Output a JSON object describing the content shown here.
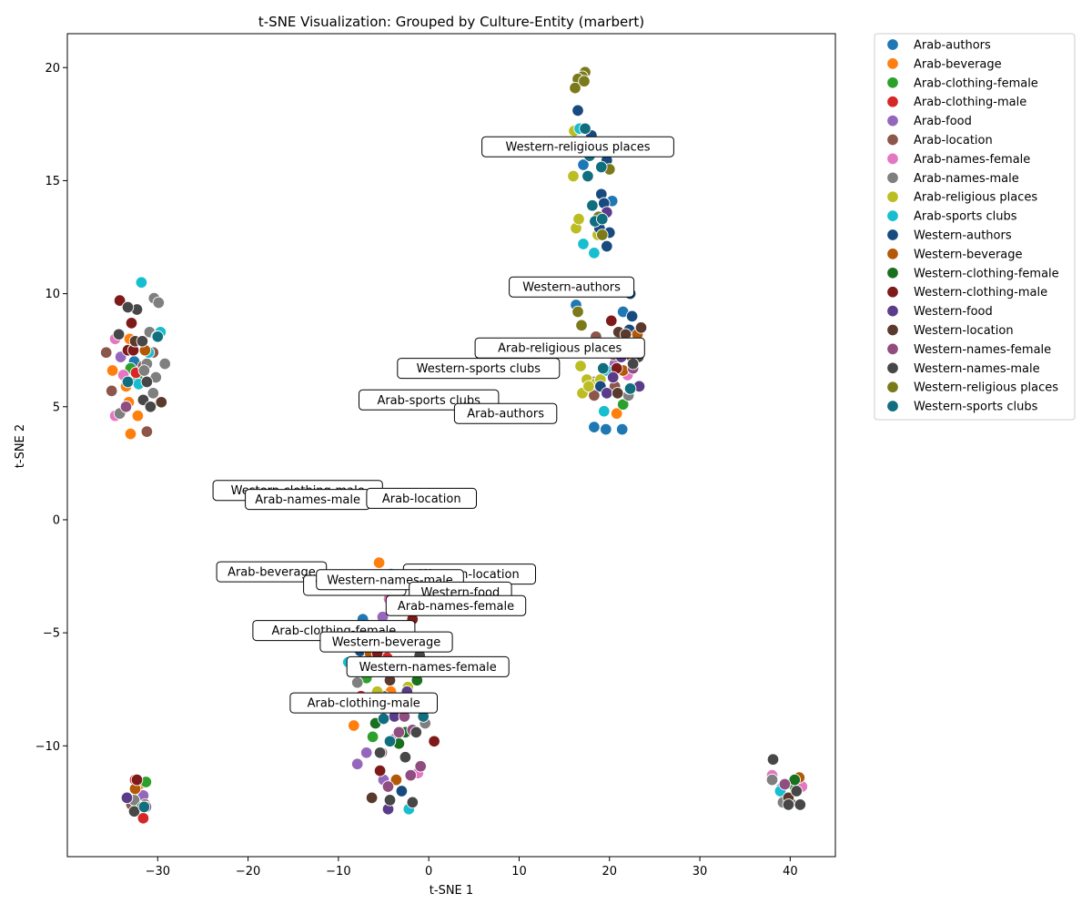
{
  "chart_data": {
    "type": "scatter",
    "title": "t-SNE Visualization: Grouped by Culture-Entity (marbert)",
    "xlabel": "t-SNE 1",
    "ylabel": "t-SNE 2",
    "xlim": [
      -40,
      45
    ],
    "ylim": [
      -14.9,
      21.5
    ],
    "xticks": [
      -30,
      -20,
      -10,
      0,
      10,
      20,
      30,
      40
    ],
    "xtick_labels": [
      "−30",
      "−20",
      "−10",
      "0",
      "10",
      "20",
      "30",
      "40"
    ],
    "yticks": [
      -10,
      -5,
      0,
      5,
      10,
      15,
      20
    ],
    "ytick_labels": [
      "−10",
      "−5",
      "0",
      "5",
      "10",
      "15",
      "20"
    ],
    "grid": false,
    "legend": "outside upper right",
    "series": [
      {
        "name": "Arab-authors",
        "color": "#1f77b4",
        "points": [
          [
            16.3,
            9.5
          ],
          [
            21.5,
            9.2
          ],
          [
            18.3,
            4.1
          ],
          [
            19.6,
            4.0
          ],
          [
            21.4,
            4.0
          ],
          [
            20.3,
            14.1
          ],
          [
            17.1,
            15.7
          ],
          [
            -32.6,
            7.0
          ],
          [
            -7.3,
            -4.4
          ],
          [
            -2.7,
            -8.2
          ],
          [
            39.0,
            -11.9
          ]
        ]
      },
      {
        "name": "Arab-beverage",
        "color": "#ff7f0e",
        "points": [
          [
            -33.1,
            8.0
          ],
          [
            -35.0,
            6.6
          ],
          [
            -33.5,
            5.9
          ],
          [
            -33.2,
            5.2
          ],
          [
            -32.2,
            4.6
          ],
          [
            -33.0,
            3.8
          ],
          [
            -5.5,
            -1.9
          ],
          [
            -8.3,
            -9.1
          ],
          [
            -4.2,
            -7.6
          ],
          [
            -0.6,
            -8.7
          ],
          [
            40.8,
            -11.5
          ],
          [
            21.3,
            6.6
          ],
          [
            20.8,
            4.7
          ],
          [
            -32.0,
            -11.7
          ]
        ]
      },
      {
        "name": "Arab-clothing-female",
        "color": "#2ca02c",
        "points": [
          [
            -33.0,
            6.7
          ],
          [
            -31.3,
            -11.6
          ],
          [
            -6.2,
            -9.6
          ],
          [
            -6.9,
            -7.0
          ],
          [
            -3.0,
            -8.6
          ],
          [
            21.5,
            5.1
          ],
          [
            40.5,
            -11.8
          ],
          [
            -32.2,
            6.2
          ]
        ]
      },
      {
        "name": "Arab-clothing-male",
        "color": "#d62728",
        "points": [
          [
            -31.6,
            -13.2
          ],
          [
            -32.5,
            -11.5
          ],
          [
            -7.5,
            -7.8
          ],
          [
            -2.0,
            -8.3
          ],
          [
            -4.6,
            -6.1
          ],
          [
            21.0,
            7.9
          ],
          [
            -32.4,
            6.5
          ]
        ]
      },
      {
        "name": "Arab-food",
        "color": "#9467bd",
        "points": [
          [
            -34.1,
            7.2
          ],
          [
            -32.6,
            -12.8
          ],
          [
            -7.9,
            -10.8
          ],
          [
            -6.9,
            -10.3
          ],
          [
            -5.0,
            -11.5
          ],
          [
            -3.8,
            -9.7
          ],
          [
            -5.1,
            -4.3
          ],
          [
            20.6,
            6.9
          ],
          [
            -31.6,
            -12.2
          ]
        ]
      },
      {
        "name": "Arab-location",
        "color": "#8c564b",
        "points": [
          [
            -35.7,
            7.4
          ],
          [
            -35.1,
            5.7
          ],
          [
            -31.2,
            3.9
          ],
          [
            -29.7,
            5.2
          ],
          [
            -30.5,
            7.4
          ],
          [
            -31.6,
            6.8
          ],
          [
            -5.2,
            -10.3
          ],
          [
            -3.0,
            -7.9
          ],
          [
            -6.1,
            -6.1
          ],
          [
            18.5,
            8.1
          ],
          [
            20.5,
            7.3
          ],
          [
            22.1,
            7.3
          ],
          [
            18.3,
            5.5
          ],
          [
            20.6,
            5.9
          ],
          [
            40.0,
            -12.5
          ],
          [
            -31.4,
            -12.6
          ],
          [
            -32.9,
            -12.6
          ]
        ]
      },
      {
        "name": "Arab-names-female",
        "color": "#e377c2",
        "points": [
          [
            -34.7,
            8.0
          ],
          [
            -34.7,
            4.6
          ],
          [
            -33.8,
            6.4
          ],
          [
            -4.4,
            -3.5
          ],
          [
            -1.2,
            -11.2
          ],
          [
            38.0,
            -11.3
          ],
          [
            41.3,
            -11.8
          ],
          [
            20.4,
            7.4
          ],
          [
            22.0,
            6.4
          ]
        ]
      },
      {
        "name": "Arab-names-male",
        "color": "#7f7f7f",
        "points": [
          [
            -30.4,
            9.8
          ],
          [
            -29.9,
            9.6
          ],
          [
            -30.9,
            8.3
          ],
          [
            -31.2,
            6.9
          ],
          [
            -30.2,
            6.3
          ],
          [
            -29.2,
            6.9
          ],
          [
            -34.2,
            4.7
          ],
          [
            -30.5,
            5.6
          ],
          [
            -31.5,
            6.6
          ],
          [
            -7.9,
            -7.2
          ],
          [
            -5.0,
            -7.8
          ],
          [
            -0.4,
            -9.0
          ],
          [
            38.0,
            -11.5
          ],
          [
            39.2,
            -12.5
          ],
          [
            18.3,
            6.1
          ],
          [
            22.1,
            5.5
          ],
          [
            -32.6,
            -12.4
          ]
        ]
      },
      {
        "name": "Arab-religious places",
        "color": "#bcbd22",
        "points": [
          [
            16.3,
            12.9
          ],
          [
            16.6,
            13.3
          ],
          [
            16.0,
            15.2
          ],
          [
            16.1,
            17.2
          ],
          [
            16.3,
            16.3
          ],
          [
            17.0,
            5.6
          ],
          [
            17.5,
            6.2
          ],
          [
            18.4,
            6.0
          ],
          [
            17.7,
            5.9
          ],
          [
            19.0,
            6.2
          ],
          [
            18.7,
            12.6
          ],
          [
            -5.7,
            -7.6
          ],
          [
            -2.3,
            -7.4
          ],
          [
            16.8,
            6.8
          ]
        ]
      },
      {
        "name": "Arab-sports clubs",
        "color": "#17becf",
        "points": [
          [
            -31.8,
            10.5
          ],
          [
            -29.7,
            8.3
          ],
          [
            -30.1,
            8.1
          ],
          [
            -31.0,
            7.4
          ],
          [
            17.1,
            12.2
          ],
          [
            18.3,
            11.8
          ],
          [
            16.7,
            17.3
          ],
          [
            19.4,
            4.8
          ],
          [
            -8.9,
            -6.3
          ],
          [
            -4.2,
            -2.4
          ],
          [
            -2.2,
            -12.8
          ],
          [
            38.9,
            -12.0
          ],
          [
            19.7,
            6.6
          ],
          [
            22.2,
            5.8
          ],
          [
            -32.1,
            6.0
          ]
        ]
      },
      {
        "name": "Western-authors",
        "color": "#174a7e",
        "points": [
          [
            16.5,
            18.1
          ],
          [
            18.0,
            17.0
          ],
          [
            19.7,
            15.9
          ],
          [
            19.1,
            14.4
          ],
          [
            18.9,
            12.9
          ],
          [
            20.0,
            12.7
          ],
          [
            19.7,
            12.1
          ],
          [
            22.3,
            10.0
          ],
          [
            22.5,
            9.0
          ],
          [
            22.2,
            8.4
          ],
          [
            19.0,
            5.9
          ],
          [
            -3.0,
            -12.0
          ],
          [
            -7.6,
            -5.8
          ],
          [
            19.4,
            14.0
          ]
        ]
      },
      {
        "name": "Western-beverage",
        "color": "#b35806",
        "points": [
          [
            23.1,
            8.2
          ],
          [
            -31.4,
            7.5
          ],
          [
            -6.5,
            -5.9
          ],
          [
            -3.6,
            -11.5
          ],
          [
            41.0,
            -11.4
          ],
          [
            21.5,
            6.6
          ],
          [
            -32.5,
            -11.9
          ]
        ]
      },
      {
        "name": "Western-clothing-female",
        "color": "#19701f",
        "points": [
          [
            -1.3,
            -7.1
          ],
          [
            -2.6,
            -9.4
          ],
          [
            -5.9,
            -9.0
          ],
          [
            -3.3,
            -9.9
          ],
          [
            40.5,
            -11.5
          ],
          [
            -31.7,
            -12.7
          ]
        ]
      },
      {
        "name": "Western-clothing-male",
        "color": "#7f1a1a",
        "points": [
          [
            -34.2,
            9.7
          ],
          [
            -32.9,
            8.7
          ],
          [
            -33.3,
            7.5
          ],
          [
            -32.7,
            7.5
          ],
          [
            20.2,
            8.8
          ],
          [
            -5.4,
            -11.1
          ],
          [
            -1.8,
            -4.4
          ],
          [
            -5.7,
            -5.9
          ],
          [
            0.6,
            -9.8
          ],
          [
            20.8,
            6.7
          ],
          [
            -32.3,
            -11.5
          ]
        ]
      },
      {
        "name": "Western-food",
        "color": "#5a3c8a",
        "points": [
          [
            19.7,
            13.6
          ],
          [
            21.3,
            7.2
          ],
          [
            19.7,
            5.6
          ],
          [
            23.3,
            5.9
          ],
          [
            -4.5,
            -12.8
          ],
          [
            -3.8,
            -8.7
          ],
          [
            -2.4,
            -7.6
          ],
          [
            -33.4,
            -12.3
          ],
          [
            20.4,
            6.3
          ]
        ]
      },
      {
        "name": "Western-location",
        "color": "#5a3a2d",
        "points": [
          [
            21.0,
            8.3
          ],
          [
            21.8,
            8.2
          ],
          [
            23.5,
            8.5
          ],
          [
            -6.3,
            -12.3
          ],
          [
            -4.3,
            -7.1
          ],
          [
            -3.3,
            -8.0
          ],
          [
            20.9,
            5.6
          ],
          [
            39.8,
            -12.3
          ],
          [
            -29.6,
            5.2
          ],
          [
            -32.5,
            7.9
          ]
        ]
      },
      {
        "name": "Western-names-female",
        "color": "#8f4d80",
        "points": [
          [
            -2.0,
            -11.3
          ],
          [
            -1.8,
            -9.3
          ],
          [
            -0.9,
            -10.9
          ],
          [
            -3.3,
            -9.4
          ],
          [
            -4.5,
            -11.8
          ],
          [
            -2.7,
            -8.7
          ],
          [
            22.6,
            6.7
          ],
          [
            22.5,
            7.6
          ],
          [
            39.4,
            -11.7
          ],
          [
            -31.3,
            -12.7
          ],
          [
            -33.5,
            5.0
          ]
        ]
      },
      {
        "name": "Western-names-male",
        "color": "#474747",
        "points": [
          [
            -32.3,
            9.3
          ],
          [
            -33.3,
            9.4
          ],
          [
            -34.3,
            8.2
          ],
          [
            -31.7,
            7.9
          ],
          [
            -31.2,
            6.1
          ],
          [
            -31.6,
            5.3
          ],
          [
            -30.8,
            5.0
          ],
          [
            -2.6,
            -10.5
          ],
          [
            -1.8,
            -12.5
          ],
          [
            -4.3,
            -12.4
          ],
          [
            -1.4,
            -9.4
          ],
          [
            -5.4,
            -10.3
          ],
          [
            -1.0,
            -6.0
          ],
          [
            23.2,
            7.2
          ],
          [
            22.6,
            6.9
          ],
          [
            22.3,
            7.8
          ],
          [
            39.8,
            -12.6
          ],
          [
            40.7,
            -12.0
          ],
          [
            41.1,
            -12.6
          ],
          [
            38.1,
            -10.6
          ],
          [
            -32.6,
            -12.9
          ]
        ]
      },
      {
        "name": "Western-religious places",
        "color": "#7a7a1b",
        "points": [
          [
            17.3,
            19.8
          ],
          [
            17.0,
            19.6
          ],
          [
            16.5,
            19.5
          ],
          [
            16.2,
            19.1
          ],
          [
            17.2,
            19.4
          ],
          [
            20.0,
            15.5
          ],
          [
            18.8,
            13.4
          ],
          [
            16.5,
            9.2
          ],
          [
            16.9,
            8.6
          ],
          [
            19.2,
            12.6
          ]
        ]
      },
      {
        "name": "Western-sports clubs",
        "color": "#116e7e",
        "points": [
          [
            17.3,
            17.3
          ],
          [
            17.8,
            16.1
          ],
          [
            17.6,
            15.2
          ],
          [
            19.1,
            15.6
          ],
          [
            18.1,
            13.9
          ],
          [
            18.4,
            13.2
          ],
          [
            19.2,
            13.3
          ],
          [
            23.3,
            7.6
          ],
          [
            19.3,
            6.7
          ],
          [
            22.3,
            5.8
          ],
          [
            -30.0,
            8.1
          ],
          [
            -0.6,
            -8.7
          ],
          [
            -4.3,
            -9.8
          ],
          [
            -5.0,
            -8.8
          ],
          [
            -33.3,
            6.1
          ],
          [
            -31.5,
            -12.7
          ]
        ]
      }
    ],
    "annotations": [
      {
        "text": "Western-religious places",
        "x": 16.5,
        "y": 16.5
      },
      {
        "text": "Western-authors",
        "x": 15.8,
        "y": 10.3
      },
      {
        "text": "Arab-religious places",
        "x": 14.5,
        "y": 7.6
      },
      {
        "text": "Western-sports clubs",
        "x": 5.5,
        "y": 6.7
      },
      {
        "text": "Arab-sports clubs",
        "x": 0.0,
        "y": 5.3
      },
      {
        "text": "Arab-authors",
        "x": 8.5,
        "y": 4.7
      },
      {
        "text": "Western-clothing-male",
        "x": -14.5,
        "y": 1.3
      },
      {
        "text": "Arab-names-male",
        "x": -13.4,
        "y": 0.9
      },
      {
        "text": "Arab-location",
        "x": -0.8,
        "y": 0.95
      },
      {
        "text": "Arab-beverage",
        "x": -17.4,
        "y": -2.3
      },
      {
        "text": "Western-location",
        "x": 4.5,
        "y": -2.4
      },
      {
        "text": "Western-food",
        "x": -8.2,
        "y": -2.9
      },
      {
        "text": "Western-names-male",
        "x": -4.3,
        "y": -2.65
      },
      {
        "text": "Western-food",
        "x": 3.5,
        "y": -3.2
      },
      {
        "text": "Arab-names-female",
        "x": 3.0,
        "y": -3.8
      },
      {
        "text": "Arab-clothing-female",
        "x": -10.5,
        "y": -4.9
      },
      {
        "text": "Western-beverage",
        "x": -4.7,
        "y": -5.4
      },
      {
        "text": "Western-names-female",
        "x": -0.1,
        "y": -6.5
      },
      {
        "text": "Arab-clothing-male",
        "x": -7.2,
        "y": -8.1
      }
    ]
  }
}
